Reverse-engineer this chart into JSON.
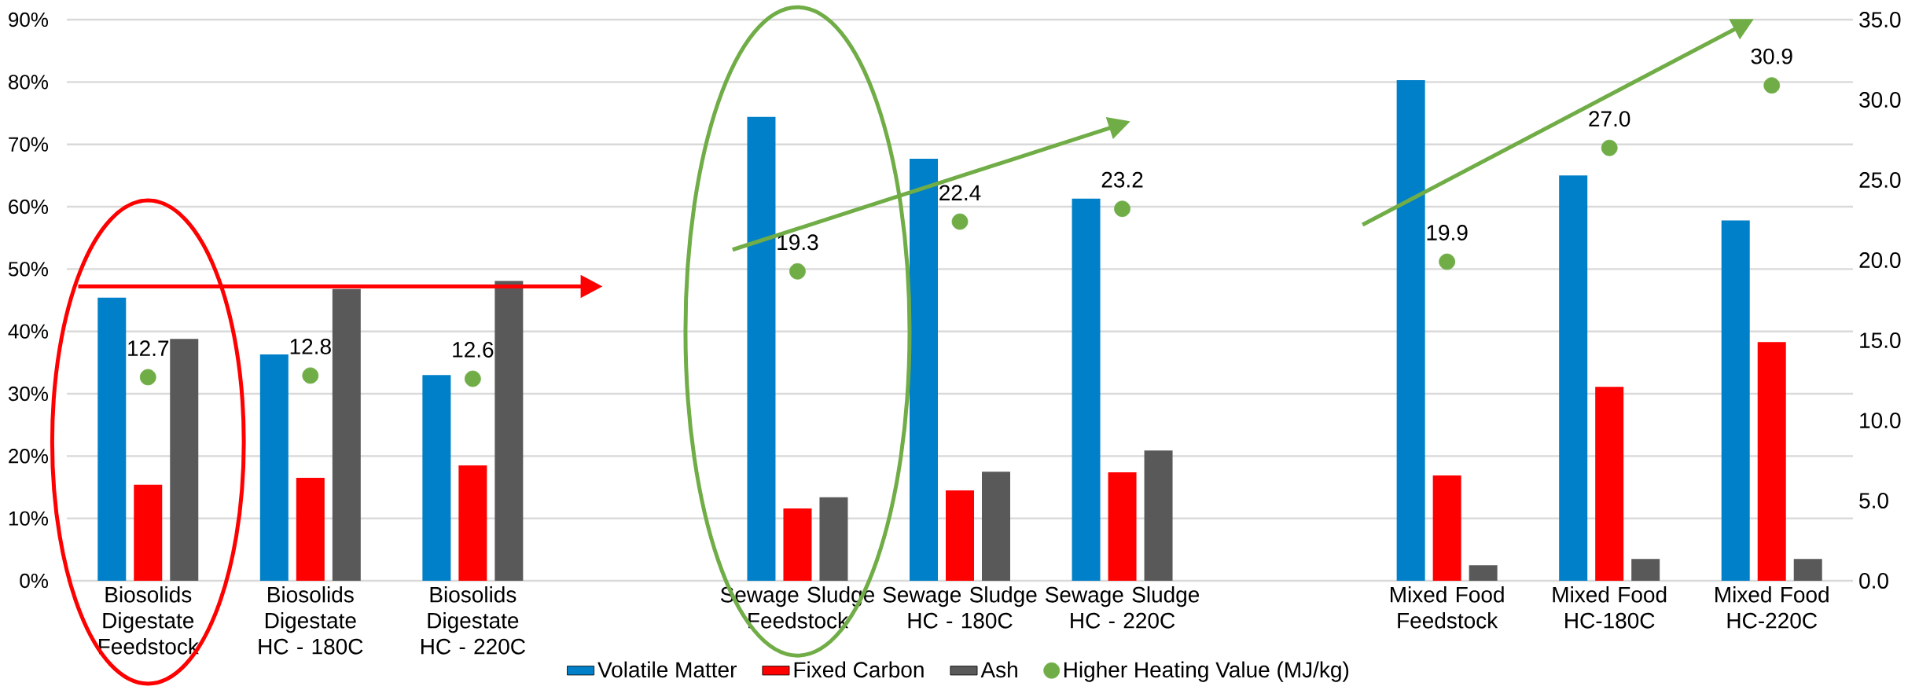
{
  "chart_data": {
    "type": "bar",
    "categories": [
      "Biosolids Digestate Feedstock",
      "Biosolids Digestate HC - 180C",
      "Biosolids Digestate HC - 220C",
      null,
      "Sewage Sludge Feedstock",
      "Sewage Sludge HC - 180C",
      "Sewage Sludge HC - 220C",
      null,
      "Mixed Food Feedstock",
      "Mixed Food HC-180C",
      "Mixed Food HC-220C"
    ],
    "series": [
      {
        "name": "Volatile Matter",
        "color": "#0080c8",
        "values": [
          45.4,
          36.3,
          33.0,
          null,
          74.4,
          67.7,
          61.3,
          null,
          80.3,
          65.0,
          57.8
        ]
      },
      {
        "name": "Fixed Carbon",
        "color": "#ff0000",
        "values": [
          15.4,
          16.5,
          18.5,
          null,
          11.6,
          14.5,
          17.4,
          null,
          16.9,
          31.1,
          38.3
        ]
      },
      {
        "name": "Ash",
        "color": "#595959",
        "values": [
          38.8,
          46.8,
          48.1,
          null,
          13.4,
          17.5,
          20.9,
          null,
          2.5,
          3.5,
          3.5
        ]
      },
      {
        "name": "Higher Heating Value (MJ/kg)",
        "color": "#70ad47",
        "type": "scatter",
        "axis": "y2",
        "marker": "circle",
        "values": [
          12.7,
          12.8,
          12.6,
          null,
          19.3,
          22.4,
          23.2,
          null,
          19.9,
          27.0,
          30.9
        ],
        "value_labels": [
          "12.7",
          "12.8",
          "12.6",
          null,
          "19.3",
          "22.4",
          "23.2",
          null,
          "19.9",
          "27.0",
          "30.9"
        ]
      }
    ],
    "ylim": [
      0,
      90
    ],
    "yticks": [
      {
        "value": 0,
        "label": "0%"
      },
      {
        "value": 10,
        "label": "10%"
      },
      {
        "value": 20,
        "label": "20%"
      },
      {
        "value": 30,
        "label": "30%"
      },
      {
        "value": 40,
        "label": "40%"
      },
      {
        "value": 50,
        "label": "50%"
      },
      {
        "value": 60,
        "label": "60%"
      },
      {
        "value": 70,
        "label": "70%"
      },
      {
        "value": 80,
        "label": "80%"
      },
      {
        "value": 90,
        "label": "90%"
      }
    ],
    "y2lim": [
      0,
      35
    ],
    "y2ticks": [
      {
        "value": 0,
        "label": "0.0"
      },
      {
        "value": 5,
        "label": "5.0"
      },
      {
        "value": 10,
        "label": "10.0"
      },
      {
        "value": 15,
        "label": "15.0"
      },
      {
        "value": 20,
        "label": "20.0"
      },
      {
        "value": 25,
        "label": "25.0"
      },
      {
        "value": 30,
        "label": "30.0"
      },
      {
        "value": 35,
        "label": "35.0"
      }
    ],
    "grid": "y",
    "legend": "bottom"
  }
}
